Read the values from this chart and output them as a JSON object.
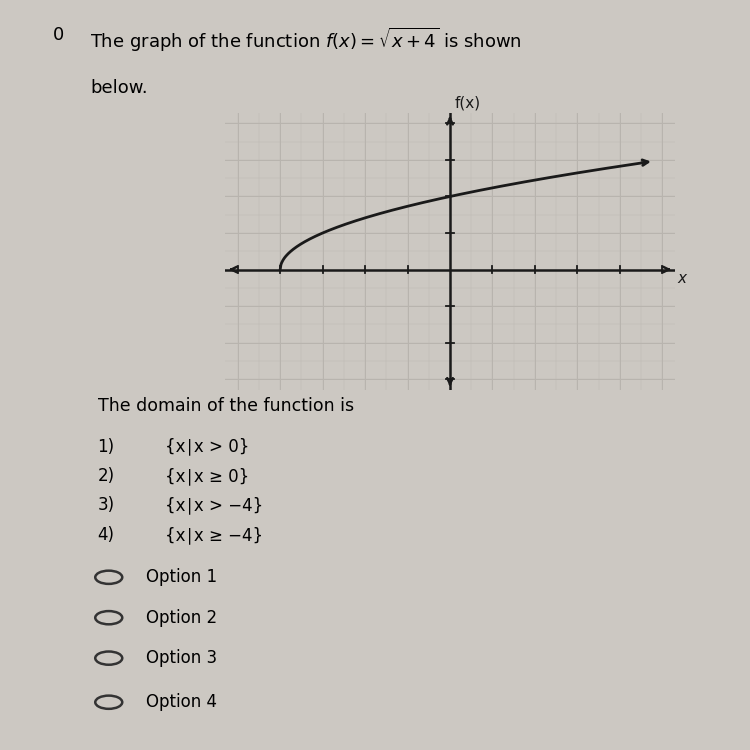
{
  "background_color": "#ccc8c2",
  "plot_bg_color": "#ddd9d3",
  "grid_color": "#b8b4ae",
  "curve_color": "#1a1a1a",
  "axis_color": "#1a1a1a",
  "domain_text": "The domain of the function is",
  "options_num": [
    "1)",
    "2)",
    "3)",
    "4)"
  ],
  "options_text": [
    "{x∣x > 0}",
    "{x∣x ≥ 0}",
    "{x∣x > −4}",
    "{x∣x ≥ −4}"
  ],
  "radio_options": [
    "Option 1",
    "Option 2",
    "Option 3",
    "Option 4"
  ],
  "xlim": [
    -5,
    5
  ],
  "ylim": [
    -3,
    4
  ],
  "x_start": -4,
  "x_end": 4.5,
  "xlabel": "x",
  "ylabel": "f(x)",
  "title_prefix": "0   The graph of the function ",
  "title_suffix": " is shown",
  "title_below": "below.",
  "func_latex": "$f(x)=\\sqrt{x+4}$"
}
